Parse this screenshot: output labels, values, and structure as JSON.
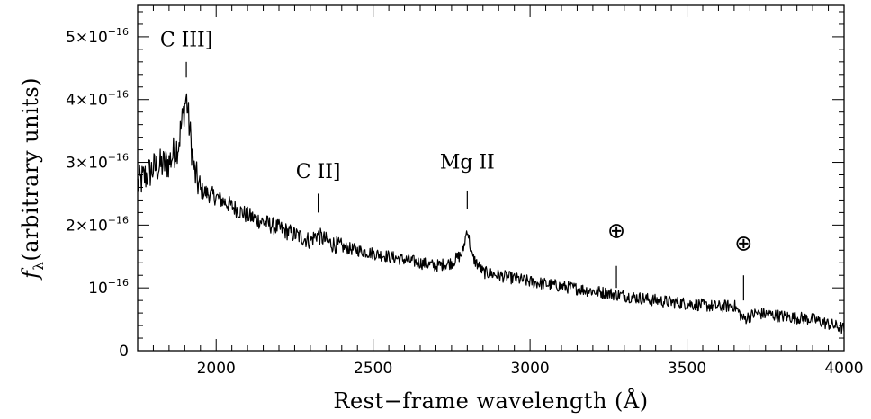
{
  "chart_data": {
    "type": "line",
    "title": "",
    "xlabel": "Rest−frame wavelength (Å)",
    "ylabel_symbol": "f",
    "ylabel_subscript": "λ",
    "ylabel_rest": "(arbitrary units)",
    "xlim": [
      1750,
      4000
    ],
    "ylim": [
      0,
      5.5e-16
    ],
    "xticks": [
      {
        "value": 2000,
        "label": "2000"
      },
      {
        "value": 2500,
        "label": "2500"
      },
      {
        "value": 3000,
        "label": "3000"
      },
      {
        "value": 3500,
        "label": "3500"
      },
      {
        "value": 4000,
        "label": "4000"
      }
    ],
    "yticks": [
      {
        "value": 0,
        "base": "0",
        "exp": ""
      },
      {
        "value": 1e-16,
        "base": "10",
        "exp": "−16"
      },
      {
        "value": 2e-16,
        "base": "2×10",
        "exp": "−16"
      },
      {
        "value": 3e-16,
        "base": "3×10",
        "exp": "−16"
      },
      {
        "value": 4e-16,
        "base": "4×10",
        "exp": "−16"
      },
      {
        "value": 5e-16,
        "base": "5×10",
        "exp": "−16"
      }
    ],
    "grid": false,
    "series": [
      {
        "color": "#000000",
        "noise_amplitude": 1e-17,
        "continuum": [
          [
            1750,
            2.65e-16
          ],
          [
            1800,
            2.9e-16
          ],
          [
            1850,
            3e-16
          ],
          [
            1880,
            3.3e-16
          ],
          [
            1895,
            3.75e-16
          ],
          [
            1905,
            4.05e-16
          ],
          [
            1915,
            3.55e-16
          ],
          [
            1930,
            2.85e-16
          ],
          [
            1950,
            2.55e-16
          ],
          [
            2000,
            2.45e-16
          ],
          [
            2100,
            2.15e-16
          ],
          [
            2200,
            1.95e-16
          ],
          [
            2300,
            1.75e-16
          ],
          [
            2320,
            1.85e-16
          ],
          [
            2360,
            1.72e-16
          ],
          [
            2400,
            1.65e-16
          ],
          [
            2500,
            1.55e-16
          ],
          [
            2600,
            1.45e-16
          ],
          [
            2700,
            1.35e-16
          ],
          [
            2750,
            1.4e-16
          ],
          [
            2785,
            1.55e-16
          ],
          [
            2800,
            1.95e-16
          ],
          [
            2815,
            1.5e-16
          ],
          [
            2850,
            1.25e-16
          ],
          [
            3000,
            1.1e-16
          ],
          [
            3200,
            9.5e-17
          ],
          [
            3400,
            8e-17
          ],
          [
            3600,
            7e-17
          ],
          [
            3650,
            7.2e-17
          ],
          [
            3680,
            5e-17
          ],
          [
            3700,
            5.5e-17
          ],
          [
            3720,
            6e-17
          ],
          [
            3800,
            5.5e-17
          ],
          [
            3900,
            5e-17
          ],
          [
            4000,
            3.5e-17
          ]
        ]
      }
    ],
    "annotations": [
      {
        "id": "c3",
        "label": "C III]",
        "x": 1905,
        "tick_y": [
          4.35e-16,
          4.6e-16
        ],
        "text_y": 4.85e-16,
        "symbol": false
      },
      {
        "id": "c2",
        "label": "C II]",
        "x": 2325,
        "tick_y": [
          2.2e-16,
          2.5e-16
        ],
        "text_y": 2.75e-16,
        "symbol": false
      },
      {
        "id": "mg2",
        "label": "Mg II",
        "x": 2800,
        "tick_y": [
          2.25e-16,
          2.55e-16
        ],
        "text_y": 2.9e-16,
        "symbol": false
      },
      {
        "id": "tel1",
        "label": "⊕",
        "x": 3275,
        "tick_y": [
          1e-16,
          1.35e-16
        ],
        "text_y": 1.8e-16,
        "symbol": true
      },
      {
        "id": "tel2",
        "label": "⊕",
        "x": 3680,
        "tick_y": [
          8e-17,
          1.2e-16
        ],
        "text_y": 1.6e-16,
        "symbol": true
      }
    ]
  }
}
